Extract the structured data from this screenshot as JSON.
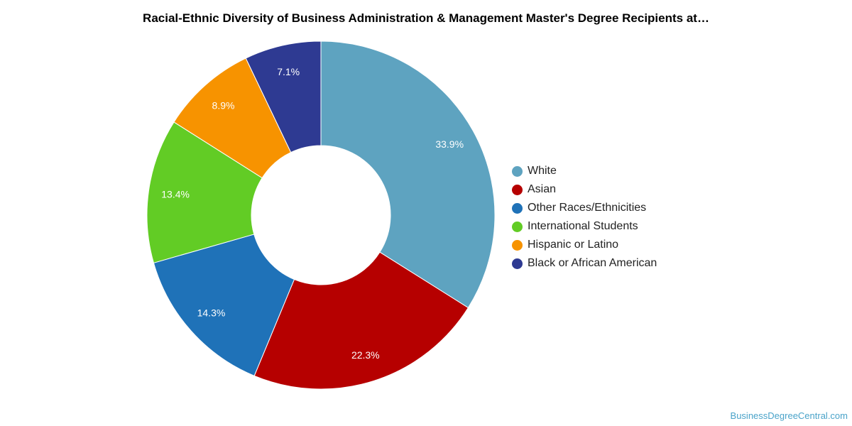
{
  "chart_data": {
    "type": "pie",
    "subtype": "donut",
    "title": "Racial-Ethnic Diversity of Business Administration & Management Master's Degree Recipients at…",
    "categories": [
      "White",
      "Asian",
      "Other Races/Ethnicities",
      "International Students",
      "Hispanic or Latino",
      "Black or African American"
    ],
    "values": [
      33.9,
      22.3,
      14.3,
      13.4,
      8.9,
      7.1
    ],
    "value_labels": [
      "33.9%",
      "22.3%",
      "14.3%",
      "13.4%",
      "8.9%",
      "7.1%"
    ],
    "colors": [
      "#5ea3c0",
      "#b60000",
      "#1f72b8",
      "#62cc25",
      "#f79300",
      "#2e3a92"
    ],
    "legend_placement": "right",
    "start_angle_degrees": 0,
    "direction": "clockwise"
  },
  "watermark": "BusinessDegreeCentral.com"
}
